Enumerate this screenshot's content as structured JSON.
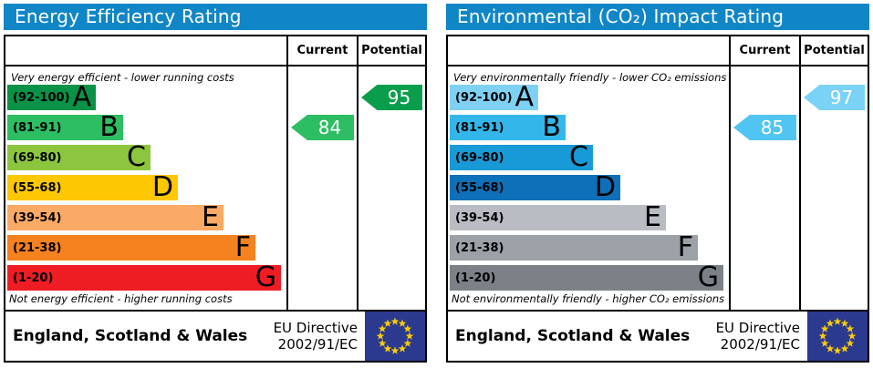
{
  "chart_data": [
    {
      "type": "bar",
      "title": "Energy Efficiency Rating",
      "categories": [
        "A",
        "B",
        "C",
        "D",
        "E",
        "F",
        "G"
      ],
      "band_ranges": [
        "92-100",
        "81-91",
        "69-80",
        "55-68",
        "39-54",
        "21-38",
        "1-20"
      ],
      "band_colors": [
        "#0a9247",
        "#2dbd62",
        "#8cc63e",
        "#fdc702",
        "#fbaa65",
        "#f5821f",
        "#ee1d23"
      ],
      "current": 84,
      "potential": 95,
      "current_band": "B",
      "potential_band": "A",
      "note_top": "Very energy efficient - lower running costs",
      "note_bottom": "Not energy efficient - higher running costs"
    },
    {
      "type": "bar",
      "title": "Environmental (CO₂) Impact Rating",
      "categories": [
        "A",
        "B",
        "C",
        "D",
        "E",
        "F",
        "G"
      ],
      "band_ranges": [
        "92-100",
        "81-91",
        "69-80",
        "55-68",
        "39-54",
        "21-38",
        "1-20"
      ],
      "band_colors": [
        "#7fd1f4",
        "#33b7ea",
        "#189ad6",
        "#0d70b8",
        "#b9bdc3",
        "#9ca1a7",
        "#7c8187"
      ],
      "current": 85,
      "potential": 97,
      "current_band": "B",
      "potential_band": "A",
      "note_top": "Very environmentally friendly - lower CO₂ emissions",
      "note_bottom": "Not environmentally friendly - higher CO₂ emissions"
    }
  ],
  "panels": [
    {
      "title": "Energy Efficiency Rating",
      "title_color": "#1086c7",
      "columns": {
        "current": "Current",
        "potential": "Potential"
      },
      "caption_top": "Very energy efficient - lower running costs",
      "caption_bottom": "Not energy efficient - higher running costs",
      "bands": [
        {
          "label": "(92-100)",
          "letter": "A",
          "color": "#0a9247"
        },
        {
          "label": "(81-91)",
          "letter": "B",
          "color": "#2dbd62"
        },
        {
          "label": "(69-80)",
          "letter": "C",
          "color": "#8cc63e"
        },
        {
          "label": "(55-68)",
          "letter": "D",
          "color": "#fdc702"
        },
        {
          "label": "(39-54)",
          "letter": "E",
          "color": "#fbaa65"
        },
        {
          "label": "(21-38)",
          "letter": "F",
          "color": "#f5821f"
        },
        {
          "label": "(1-20)",
          "letter": "G",
          "color": "#ee1d23"
        }
      ],
      "current": {
        "value": 84,
        "color": "#2dbd62",
        "row": 1
      },
      "potential": {
        "value": 95,
        "color": "#0a9e4c",
        "row": 0
      },
      "footer": {
        "region": "England, Scotland & Wales",
        "directive_line1": "EU Directive",
        "directive_line2": "2002/91/EC"
      }
    },
    {
      "title": "Environmental (CO₂) Impact Rating",
      "title_color": "#1086c7",
      "columns": {
        "current": "Current",
        "potential": "Potential"
      },
      "caption_top": "Very environmentally friendly - lower CO₂ emissions",
      "caption_bottom": "Not environmentally friendly - higher CO₂ emissions",
      "bands": [
        {
          "label": "(92-100)",
          "letter": "A",
          "color": "#7fd1f4"
        },
        {
          "label": "(81-91)",
          "letter": "B",
          "color": "#33b7ea"
        },
        {
          "label": "(69-80)",
          "letter": "C",
          "color": "#189ad6"
        },
        {
          "label": "(55-68)",
          "letter": "D",
          "color": "#0d70b8"
        },
        {
          "label": "(39-54)",
          "letter": "E",
          "color": "#b9bdc3"
        },
        {
          "label": "(21-38)",
          "letter": "F",
          "color": "#9ca1a7"
        },
        {
          "label": "(1-20)",
          "letter": "G",
          "color": "#7c8187"
        }
      ],
      "current": {
        "value": 85,
        "color": "#50c5f2",
        "row": 1
      },
      "potential": {
        "value": 97,
        "color": "#7ad2f6",
        "row": 0
      },
      "footer": {
        "region": "England, Scotland & Wales",
        "directive_line1": "EU Directive",
        "directive_line2": "2002/91/EC"
      }
    }
  ],
  "eu_flag": {
    "background": "#2b3a8f",
    "star_color": "#ffcc00",
    "star_count": 12
  }
}
